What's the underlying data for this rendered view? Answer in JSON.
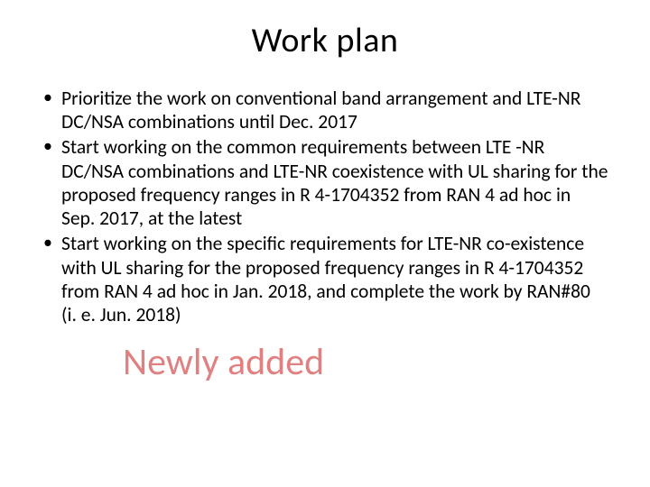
{
  "title": "Work plan",
  "bullets": [
    "Prioritize the work on conventional band arrangement and LTE-NR DC/NSA combinations until Dec. 2017",
    "Start working on the common requirements between LTE -NR DC/NSA combinations and LTE-NR coexistence with UL sharing for the proposed frequency ranges in R 4-1704352 from RAN 4 ad hoc in Sep. 2017, at the latest",
    "Start working on the specific requirements for LTE-NR co-existence with UL sharing for the proposed frequency ranges in R 4-1704352 from RAN 4 ad hoc in Jan. 2018, and complete the work by RAN#80 (i. e. Jun. 2018)"
  ],
  "footer_note": "Newly added",
  "colors": {
    "background": "#ffffff",
    "text": "#000000",
    "accent": "#e08080"
  },
  "typography": {
    "title_fontsize": 38,
    "bullet_fontsize": 21.5,
    "footer_fontsize": 42,
    "font_family": "Calibri"
  }
}
